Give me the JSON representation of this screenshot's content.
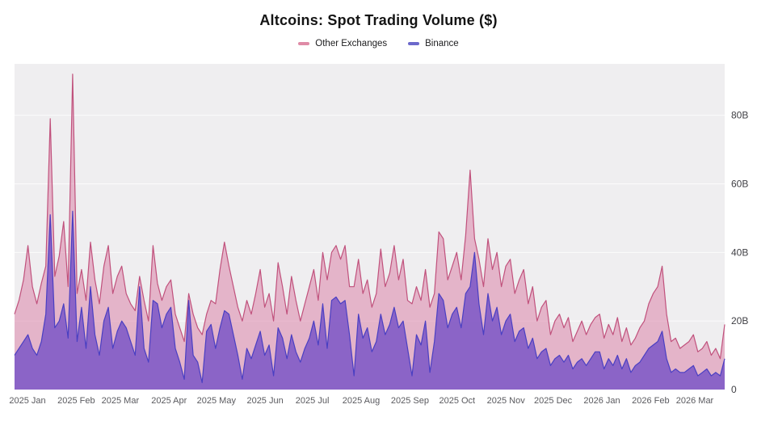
{
  "chart_data": {
    "type": "area",
    "title": "Altcoins: Spot Trading Volume ($)",
    "mode": "overlaid",
    "unit": "USD billions",
    "ylim": [
      0,
      95
    ],
    "grid": "horizontal white lines at 20B intervals",
    "legend_position": "top-center",
    "y_axis_side": "right",
    "plot_background": "#efeef0",
    "grid_color": "rgba(255,255,255,0.8)",
    "y_ticks": [
      {
        "label": "0",
        "value": 0
      },
      {
        "label": "20B",
        "value": 20
      },
      {
        "label": "40B",
        "value": 40
      },
      {
        "label": "60B",
        "value": 60
      },
      {
        "label": "80B",
        "value": 80
      }
    ],
    "x_ticks": [
      "2025 Jan",
      "2025 Feb",
      "2025 Mar",
      "2025 Apr",
      "2025 May",
      "2025 Jun",
      "2025 Jul",
      "2025 Aug",
      "2025 Sep",
      "2025 Oct",
      "2025 Nov",
      "2025 Dec",
      "2026 Jan",
      "2026 Feb",
      "2026 Mar"
    ],
    "series": [
      {
        "name": "Other Exchanges",
        "marker": "#df8ba6",
        "stroke": "#c0517c",
        "fill": "rgba(219,133,170,0.55)",
        "values": [
          22,
          26,
          32,
          42,
          30,
          25,
          31,
          36,
          79,
          33,
          39,
          49,
          30,
          92,
          28,
          35,
          26,
          43,
          32,
          25,
          36,
          42,
          28,
          33,
          36,
          28,
          25,
          23,
          33,
          26,
          20,
          42,
          31,
          26,
          30,
          32,
          22,
          18,
          14,
          28,
          22,
          18,
          16,
          22,
          26,
          25,
          35,
          43,
          36,
          30,
          24,
          20,
          26,
          22,
          28,
          35,
          24,
          28,
          20,
          37,
          30,
          22,
          33,
          26,
          20,
          25,
          30,
          35,
          26,
          40,
          32,
          40,
          42,
          38,
          42,
          30,
          30,
          38,
          28,
          32,
          24,
          28,
          41,
          30,
          34,
          42,
          32,
          38,
          26,
          25,
          30,
          26,
          35,
          24,
          28,
          46,
          44,
          32,
          36,
          40,
          32,
          45,
          64,
          44,
          38,
          30,
          44,
          35,
          40,
          30,
          36,
          38,
          28,
          32,
          35,
          25,
          30,
          20,
          24,
          26,
          16,
          20,
          22,
          18,
          21,
          14,
          17,
          20,
          16,
          19,
          21,
          22,
          15,
          19,
          16,
          21,
          14,
          18,
          13,
          15,
          18,
          20,
          25,
          28,
          30,
          36,
          22,
          14,
          15,
          12,
          13,
          14,
          16,
          11,
          12,
          14,
          10,
          12,
          9,
          19
        ]
      },
      {
        "name": "Binance",
        "marker": "#6c69cb",
        "stroke": "#4a3fc2",
        "fill": "rgba(114,77,198,0.78)",
        "values": [
          10,
          12,
          14,
          16,
          12,
          10,
          14,
          22,
          51,
          18,
          20,
          25,
          15,
          52,
          14,
          24,
          12,
          30,
          16,
          10,
          20,
          24,
          12,
          17,
          20,
          18,
          14,
          10,
          30,
          12,
          8,
          26,
          25,
          18,
          22,
          24,
          12,
          8,
          3,
          26,
          10,
          8,
          2,
          17,
          19,
          12,
          18,
          23,
          22,
          16,
          10,
          3,
          12,
          9,
          13,
          17,
          10,
          13,
          4,
          18,
          15,
          9,
          16,
          11,
          8,
          12,
          15,
          20,
          13,
          25,
          12,
          26,
          27,
          25,
          26,
          16,
          4,
          22,
          15,
          18,
          11,
          14,
          22,
          16,
          19,
          24,
          18,
          20,
          12,
          4,
          16,
          13,
          20,
          5,
          14,
          28,
          26,
          18,
          22,
          24,
          18,
          28,
          30,
          40,
          25,
          16,
          28,
          20,
          24,
          16,
          20,
          22,
          14,
          17,
          18,
          12,
          15,
          9,
          11,
          12,
          7,
          9,
          10,
          8,
          10,
          6,
          8,
          9,
          7,
          9,
          11,
          11,
          6,
          9,
          7,
          10,
          6,
          9,
          5,
          7,
          8,
          10,
          12,
          13,
          14,
          17,
          9,
          5,
          6,
          5,
          5,
          6,
          7,
          4,
          5,
          6,
          4,
          5,
          4,
          9
        ]
      }
    ]
  }
}
